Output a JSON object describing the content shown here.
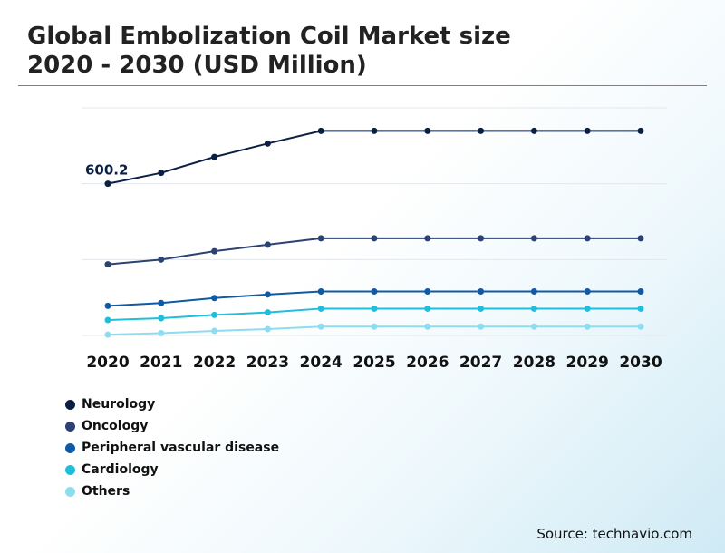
{
  "header": {
    "title_line1": "Global Embolization Coil Market size",
    "title_line2": "2020 - 2030 (USD Million)"
  },
  "source": "Source: technavio.com",
  "chart_data": {
    "type": "line",
    "title": "Global Embolization Coil Market size 2020 - 2030 (USD Million)",
    "xlabel": "",
    "ylabel": "",
    "categories": [
      "2020",
      "2021",
      "2022",
      "2023",
      "2024",
      "2025",
      "2026",
      "2027",
      "2028",
      "2029",
      "2030"
    ],
    "ylim": [
      0,
      900
    ],
    "grid": true,
    "legend_position": "bottom-left",
    "annotations": [
      {
        "series": "Neurology",
        "year": "2020",
        "text": "600.2"
      }
    ],
    "series": [
      {
        "name": "Neurology",
        "color": "#0b1f45",
        "values": [
          600.2,
          643,
          706,
          759,
          809,
          809,
          809,
          809,
          809,
          809,
          809
        ]
      },
      {
        "name": "Oncology",
        "color": "#2b4272",
        "values": [
          281,
          300,
          333,
          359,
          384,
          384,
          384,
          384,
          384,
          384,
          384
        ]
      },
      {
        "name": "Peripheral vascular disease",
        "color": "#0f5aa6",
        "values": [
          117,
          128,
          148,
          162,
          174,
          174,
          174,
          174,
          174,
          174,
          174
        ]
      },
      {
        "name": "Cardiology",
        "color": "#1ebedc",
        "values": [
          61,
          68,
          81,
          91,
          106,
          106,
          106,
          106,
          106,
          106,
          106
        ]
      },
      {
        "name": "Others",
        "color": "#8fdcf0",
        "values": [
          3,
          9,
          18,
          25,
          35,
          35,
          35,
          35,
          35,
          35,
          35
        ]
      }
    ]
  }
}
